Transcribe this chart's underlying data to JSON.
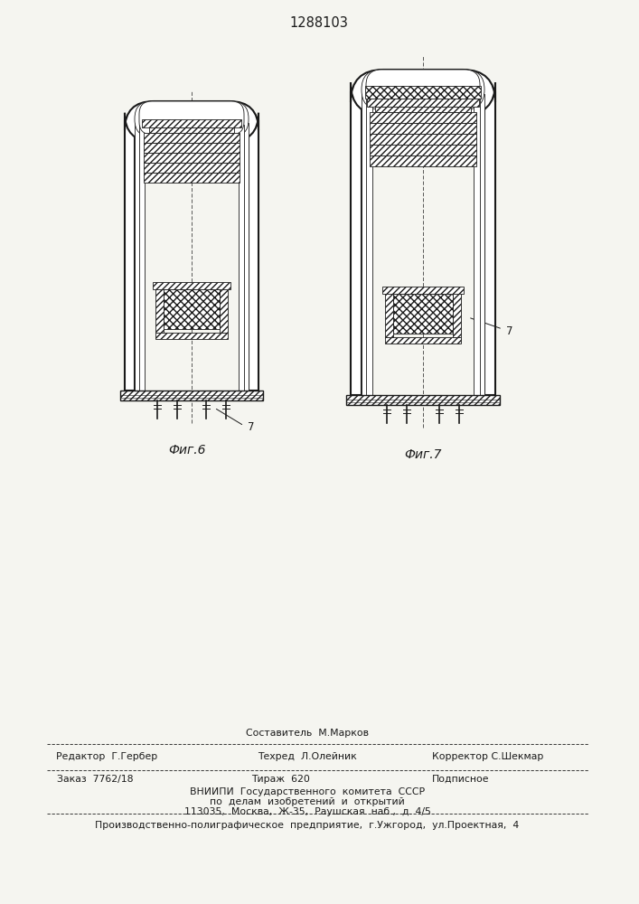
{
  "title": "1288103",
  "bg_color": "#f5f5f0",
  "line_color": "#1a1a1a",
  "fig6_label": "Фиг.6",
  "fig7_label": "Фиг.7",
  "footer": {
    "row_sestavitel": "Составитель  М.Марков",
    "row_redaktor": "Редактор  Г.Гербер",
    "row_tehred": "Техред  Л.Олейник",
    "row_korrektor": "Корректор С.Шекмар",
    "row_zakaz": "Заказ  7762/18",
    "row_tirazh": "Тираж  620",
    "row_podpisnoe": "Подписное",
    "row_vniipи": "ВНИИПИ  Государственного  комитета  СССР",
    "row_del": "по  делам  изобретений  и  открытий",
    "row_addr": "113035,  Москва,  Ж-35,  Раушская  наб.,  д. 4/5",
    "row_proizv": "Производственно-полиграфическое  предприятие,  г.Ужгород,  ул.Проектная,  4"
  }
}
